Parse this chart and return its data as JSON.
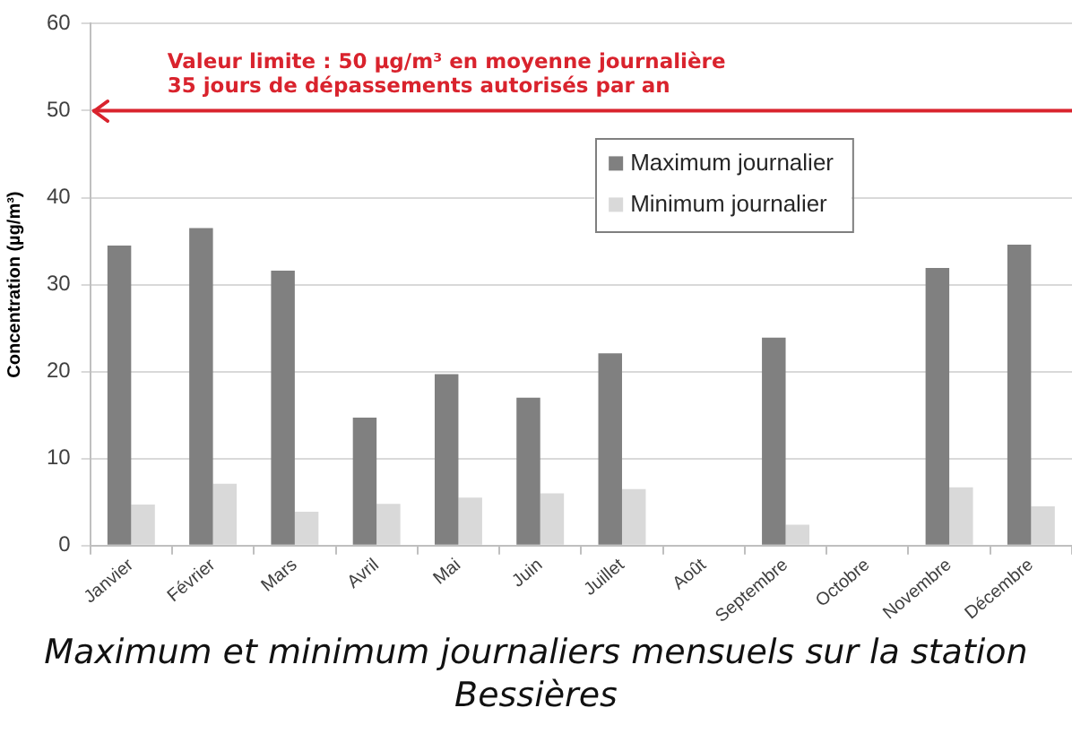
{
  "chart_data": {
    "type": "bar",
    "title": "Maximum et minimum journaliers mensuels sur la station Bessières",
    "ylabel": "Concentration (µg/m³)",
    "categories": [
      "Janvier",
      "Février",
      "Mars",
      "Avril",
      "Mai",
      "Juin",
      "Juillet",
      "Août",
      "Septembre",
      "Octobre",
      "Novembre",
      "Décembre"
    ],
    "series": [
      {
        "name": "Maximum journalier",
        "color": "#808080",
        "values": [
          34.5,
          36.5,
          31.6,
          14.7,
          19.7,
          17.0,
          22.1,
          null,
          23.9,
          null,
          31.9,
          34.6
        ]
      },
      {
        "name": "Minimum journalier",
        "color": "#d9d9d9",
        "values": [
          4.7,
          7.1,
          3.9,
          4.8,
          5.5,
          6.0,
          6.5,
          null,
          2.4,
          null,
          6.7,
          4.5
        ]
      }
    ],
    "ylim": [
      0,
      60
    ],
    "yticks": [
      0,
      10,
      20,
      30,
      40,
      50,
      60
    ],
    "grid": "y",
    "legend": "top right",
    "ref_lines": [
      {
        "axis": "y",
        "value": 50,
        "label": "Valeur limite : 50 µg/m³ en moyenne journalière\n35 jours de dépassements autorisés par an",
        "color": "#d9232d"
      }
    ]
  }
}
